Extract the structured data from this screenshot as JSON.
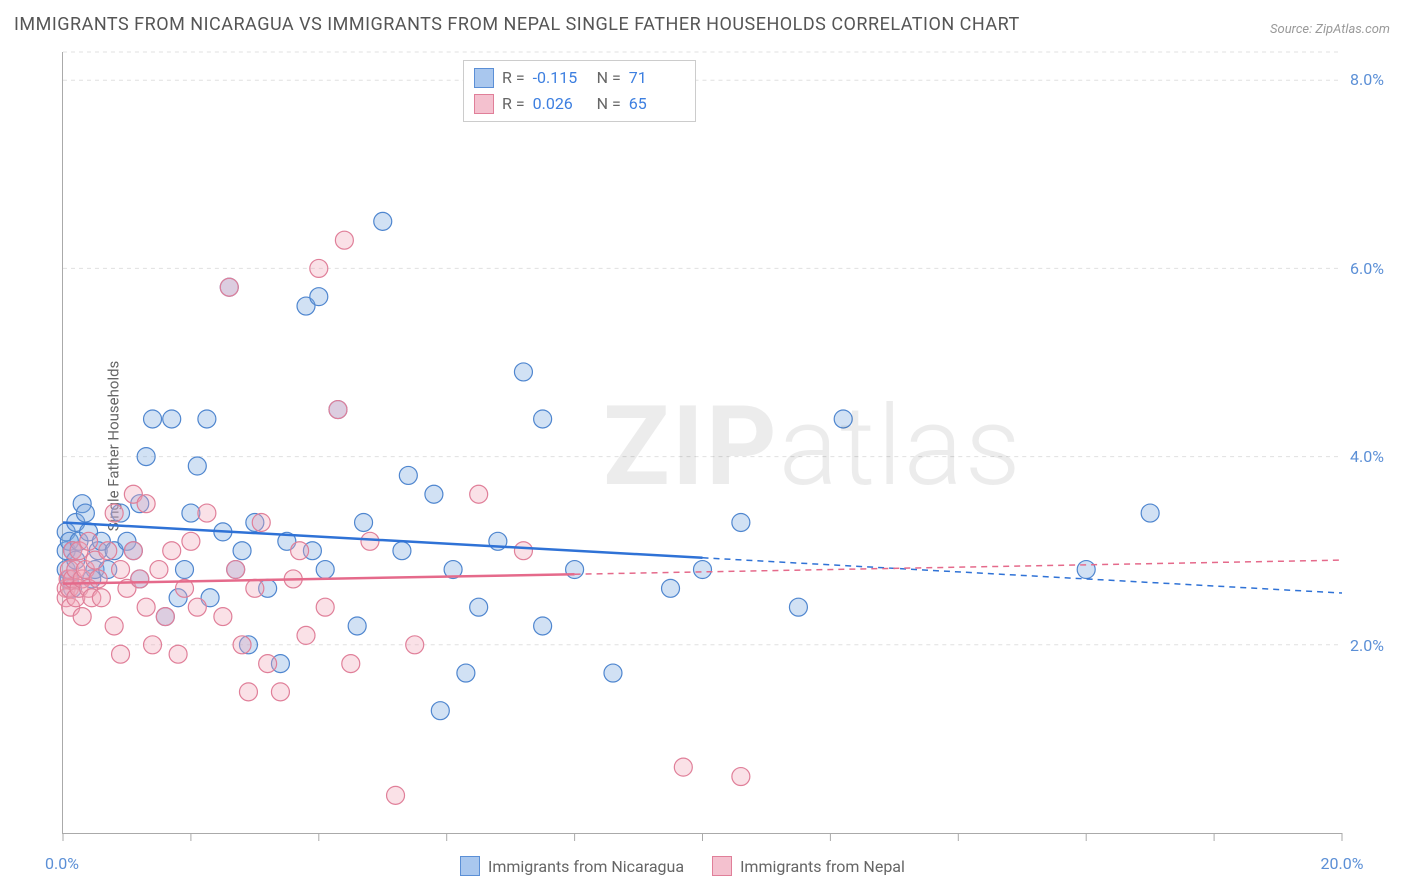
{
  "title": "IMMIGRANTS FROM NICARAGUA VS IMMIGRANTS FROM NEPAL SINGLE FATHER HOUSEHOLDS CORRELATION CHART",
  "source": "Source: ZipAtlas.com",
  "ylabel": "Single Father Households",
  "watermark_bold": "ZIP",
  "watermark_rest": "atlas",
  "chart": {
    "type": "scatter",
    "x_min": 0,
    "x_max": 20,
    "y_min": 0,
    "y_max": 8.3,
    "x_ticks": [
      0,
      2,
      4,
      6,
      8,
      10,
      12,
      14,
      16,
      18,
      20
    ],
    "x_labels": [
      {
        "v": 0,
        "t": "0.0%"
      },
      {
        "v": 20,
        "t": "20.0%"
      }
    ],
    "y_gridlines": [
      2,
      4,
      6,
      8,
      8.3
    ],
    "y_labels": [
      {
        "v": 2,
        "t": "2.0%"
      },
      {
        "v": 4,
        "t": "4.0%"
      },
      {
        "v": 6,
        "t": "6.0%"
      },
      {
        "v": 8,
        "t": "8.0%"
      }
    ],
    "background_color": "#ffffff",
    "grid_color": "#e0e0e0",
    "axis_color": "#aaaaaa",
    "marker_radius": 9,
    "series": [
      {
        "name": "Immigrants from Nicaragua",
        "color_fill": "#7ba9e0",
        "color_stroke": "#4f86cf",
        "reg_color": "#2f72d6",
        "R": "-0.115",
        "N": "71",
        "reg_y_at_xmin": 3.3,
        "reg_y_at_xmax": 2.55,
        "dash_start_x": 10.0,
        "points": [
          [
            0.05,
            2.8
          ],
          [
            0.05,
            3.0
          ],
          [
            0.05,
            3.2
          ],
          [
            0.1,
            2.7
          ],
          [
            0.1,
            3.1
          ],
          [
            0.15,
            3.0
          ],
          [
            0.15,
            2.6
          ],
          [
            0.2,
            2.9
          ],
          [
            0.2,
            3.3
          ],
          [
            0.25,
            3.1
          ],
          [
            0.3,
            3.5
          ],
          [
            0.35,
            3.4
          ],
          [
            0.4,
            3.2
          ],
          [
            0.45,
            2.7
          ],
          [
            0.5,
            2.8
          ],
          [
            0.55,
            3.0
          ],
          [
            0.6,
            3.1
          ],
          [
            0.7,
            2.8
          ],
          [
            0.8,
            3.0
          ],
          [
            0.9,
            3.4
          ],
          [
            1.0,
            3.1
          ],
          [
            1.1,
            3.0
          ],
          [
            1.2,
            2.7
          ],
          [
            1.2,
            3.5
          ],
          [
            1.3,
            4.0
          ],
          [
            1.4,
            4.4
          ],
          [
            1.7,
            4.4
          ],
          [
            1.6,
            2.3
          ],
          [
            1.8,
            2.5
          ],
          [
            1.9,
            2.8
          ],
          [
            2.0,
            3.4
          ],
          [
            2.1,
            3.9
          ],
          [
            2.25,
            4.4
          ],
          [
            2.3,
            2.5
          ],
          [
            2.5,
            3.2
          ],
          [
            2.6,
            5.8
          ],
          [
            2.7,
            2.8
          ],
          [
            2.8,
            3.0
          ],
          [
            2.9,
            2.0
          ],
          [
            3.0,
            3.3
          ],
          [
            3.2,
            2.6
          ],
          [
            3.4,
            1.8
          ],
          [
            3.5,
            3.1
          ],
          [
            3.8,
            5.6
          ],
          [
            3.9,
            3.0
          ],
          [
            4.0,
            5.7
          ],
          [
            4.1,
            2.8
          ],
          [
            4.3,
            4.5
          ],
          [
            4.6,
            2.2
          ],
          [
            4.7,
            3.3
          ],
          [
            5.0,
            6.5
          ],
          [
            5.3,
            3.0
          ],
          [
            5.4,
            3.8
          ],
          [
            5.8,
            3.6
          ],
          [
            5.9,
            1.3
          ],
          [
            6.1,
            2.8
          ],
          [
            6.3,
            1.7
          ],
          [
            6.5,
            2.4
          ],
          [
            6.8,
            3.1
          ],
          [
            7.2,
            4.9
          ],
          [
            7.5,
            2.2
          ],
          [
            7.5,
            4.4
          ],
          [
            8.0,
            2.8
          ],
          [
            8.6,
            1.7
          ],
          [
            9.5,
            2.6
          ],
          [
            10.0,
            2.8
          ],
          [
            10.6,
            3.3
          ],
          [
            11.5,
            2.4
          ],
          [
            12.2,
            4.4
          ],
          [
            16.0,
            2.8
          ],
          [
            17.0,
            3.4
          ]
        ]
      },
      {
        "name": "Immigrants from Nepal",
        "color_fill": "#f0a8b9",
        "color_stroke": "#e07f99",
        "reg_color": "#e56a8b",
        "R": "0.026",
        "N": "65",
        "reg_y_at_xmin": 2.65,
        "reg_y_at_xmax": 2.9,
        "dash_start_x": 8.0,
        "points": [
          [
            0.05,
            2.6
          ],
          [
            0.05,
            2.5
          ],
          [
            0.08,
            2.7
          ],
          [
            0.1,
            2.6
          ],
          [
            0.1,
            2.8
          ],
          [
            0.12,
            2.4
          ],
          [
            0.15,
            2.7
          ],
          [
            0.15,
            3.0
          ],
          [
            0.2,
            2.5
          ],
          [
            0.2,
            2.8
          ],
          [
            0.25,
            2.6
          ],
          [
            0.25,
            3.0
          ],
          [
            0.3,
            2.7
          ],
          [
            0.3,
            2.3
          ],
          [
            0.35,
            2.8
          ],
          [
            0.4,
            2.6
          ],
          [
            0.4,
            3.1
          ],
          [
            0.45,
            2.5
          ],
          [
            0.5,
            2.9
          ],
          [
            0.55,
            2.7
          ],
          [
            0.6,
            2.5
          ],
          [
            0.7,
            3.0
          ],
          [
            0.8,
            3.4
          ],
          [
            0.8,
            2.2
          ],
          [
            0.9,
            2.8
          ],
          [
            0.9,
            1.9
          ],
          [
            1.0,
            2.6
          ],
          [
            1.1,
            3.0
          ],
          [
            1.1,
            3.6
          ],
          [
            1.2,
            2.7
          ],
          [
            1.3,
            2.4
          ],
          [
            1.3,
            3.5
          ],
          [
            1.4,
            2.0
          ],
          [
            1.5,
            2.8
          ],
          [
            1.6,
            2.3
          ],
          [
            1.7,
            3.0
          ],
          [
            1.8,
            1.9
          ],
          [
            1.9,
            2.6
          ],
          [
            2.0,
            3.1
          ],
          [
            2.1,
            2.4
          ],
          [
            2.25,
            3.4
          ],
          [
            2.5,
            2.3
          ],
          [
            2.6,
            5.8
          ],
          [
            2.7,
            2.8
          ],
          [
            2.8,
            2.0
          ],
          [
            2.9,
            1.5
          ],
          [
            3.0,
            2.6
          ],
          [
            3.1,
            3.3
          ],
          [
            3.2,
            1.8
          ],
          [
            3.4,
            1.5
          ],
          [
            3.6,
            2.7
          ],
          [
            3.7,
            3.0
          ],
          [
            3.8,
            2.1
          ],
          [
            4.0,
            6.0
          ],
          [
            4.1,
            2.4
          ],
          [
            4.3,
            4.5
          ],
          [
            4.4,
            6.3
          ],
          [
            4.5,
            1.8
          ],
          [
            4.8,
            3.1
          ],
          [
            5.2,
            0.4
          ],
          [
            5.5,
            2.0
          ],
          [
            6.5,
            3.6
          ],
          [
            7.2,
            3.0
          ],
          [
            9.7,
            0.7
          ],
          [
            10.6,
            0.6
          ]
        ]
      }
    ]
  },
  "legend": {
    "bottom": [
      {
        "label": "Immigrants from Nicaragua",
        "fill": "#a9c7ee",
        "stroke": "#5b8fd6"
      },
      {
        "label": "Immigrants from Nepal",
        "fill": "#f4c1cf",
        "stroke": "#e07f99"
      }
    ]
  }
}
